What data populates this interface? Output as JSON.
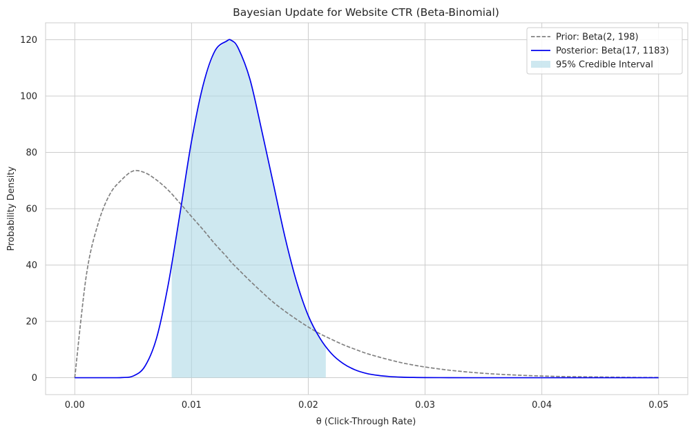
{
  "chart_data": {
    "type": "line",
    "title": "Bayesian Update for Website CTR (Beta-Binomial)",
    "xlabel": "θ (Click-Through Rate)",
    "ylabel": "Probability Density",
    "xlim": [
      -0.0025,
      0.0525
    ],
    "ylim": [
      -6,
      126
    ],
    "xticks": [
      0.0,
      0.01,
      0.02,
      0.03,
      0.04,
      0.05
    ],
    "xtick_labels": [
      "0.00",
      "0.01",
      "0.02",
      "0.03",
      "0.04",
      "0.05"
    ],
    "yticks": [
      0,
      20,
      40,
      60,
      80,
      100,
      120
    ],
    "ytick_labels": [
      "0",
      "20",
      "40",
      "60",
      "80",
      "100",
      "120"
    ],
    "grid": true,
    "legend_position": "top-right",
    "x": [
      0.0,
      0.001,
      0.002,
      0.003,
      0.004,
      0.005,
      0.006,
      0.007,
      0.008,
      0.009,
      0.01,
      0.011,
      0.012,
      0.013,
      0.0134,
      0.014,
      0.015,
      0.016,
      0.017,
      0.018,
      0.019,
      0.02,
      0.021,
      0.022,
      0.023,
      0.024,
      0.025,
      0.026,
      0.027,
      0.028,
      0.029,
      0.03,
      0.032,
      0.034,
      0.036,
      0.038,
      0.04,
      0.042,
      0.044,
      0.046,
      0.048,
      0.05
    ],
    "series": [
      {
        "name": "Prior: Beta(2, 198)",
        "color": "#808080",
        "style": "dashed",
        "values": [
          0.0,
          36.6,
          54.7,
          65.1,
          70.2,
          73.4,
          72.8,
          70.2,
          66.6,
          62.0,
          57.2,
          52.5,
          47.5,
          43.0,
          41.0,
          38.5,
          34.4,
          30.5,
          26.8,
          23.6,
          20.7,
          18.0,
          15.6,
          13.6,
          11.7,
          10.1,
          8.6,
          7.4,
          6.3,
          5.3,
          4.5,
          3.8,
          2.7,
          1.9,
          1.3,
          0.9,
          0.6,
          0.4,
          0.3,
          0.2,
          0.1,
          0.08
        ]
      },
      {
        "name": "Posterior: Beta(17, 1183)",
        "color": "#0000ee",
        "style": "solid",
        "values": [
          0.0,
          0.0,
          0.0,
          0.0,
          0.05,
          0.6,
          4.0,
          14.0,
          33.0,
          58.0,
          84.0,
          104.0,
          116.0,
          119.5,
          119.8,
          117.0,
          106.0,
          88.0,
          69.0,
          50.0,
          34.0,
          22.0,
          14.0,
          8.5,
          5.0,
          2.8,
          1.5,
          0.8,
          0.4,
          0.2,
          0.1,
          0.05,
          0.01,
          0.0,
          0.0,
          0.0,
          0.0,
          0.0,
          0.0,
          0.0,
          0.0,
          0.0
        ]
      }
    ],
    "credible_interval": {
      "name": "95% Credible Interval",
      "color": "#add8e6",
      "lower": 0.0083,
      "upper": 0.0215
    }
  }
}
